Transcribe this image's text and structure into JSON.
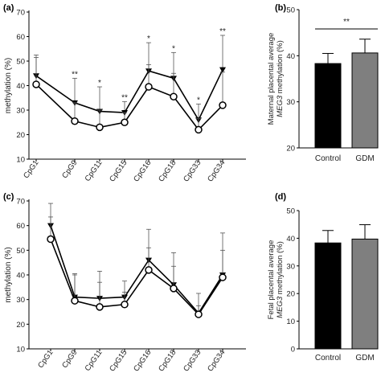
{
  "chart_data": [
    {
      "panel": "(a)",
      "type": "line",
      "categories": [
        "CpG1",
        "CpG9",
        "CpG11",
        "CpG15",
        "CpG16",
        "CpG18",
        "CpG33",
        "CpG34"
      ],
      "ylabel": "methylation (%)",
      "ylim": [
        10,
        70
      ],
      "yticks": [
        10,
        20,
        30,
        40,
        50,
        60,
        70
      ],
      "series": [
        {
          "marker": "filled-triangle",
          "values": [
            44,
            33,
            29.5,
            29,
            46,
            43,
            26,
            46.5
          ],
          "err": [
            8.5,
            10,
            10,
            4.5,
            11.5,
            10.5,
            6.5,
            14
          ]
        },
        {
          "marker": "open-circle",
          "values": [
            40.5,
            25.5,
            23,
            25,
            39.5,
            35.5,
            22,
            32
          ],
          "err": [
            11,
            7.5,
            7,
            4,
            9,
            9.5,
            4.5,
            13.5
          ]
        }
      ],
      "annotations": [
        "",
        "**",
        "*",
        "**",
        "*",
        "*",
        "*",
        "**"
      ]
    },
    {
      "panel": "(b)",
      "type": "bar",
      "categories": [
        "Control",
        "GDM"
      ],
      "values": [
        38.3,
        40.6
      ],
      "err": [
        2.2,
        3.0
      ],
      "colors": [
        "#000000",
        "#7f7f7f"
      ],
      "ylabel_line1": "Maternal placental average",
      "ylabel_gene": "MEG3",
      "ylabel_rest": " methylation (%)",
      "ylim": [
        20,
        50
      ],
      "yticks": [
        20,
        30,
        40,
        50
      ],
      "annotation": "**"
    },
    {
      "panel": "(c)",
      "type": "line",
      "categories": [
        "CpG1",
        "CpG9",
        "CpG11",
        "CpG15",
        "CpG16",
        "CpG18",
        "CpG33",
        "CpG34"
      ],
      "ylabel": "methylation (%)",
      "ylim": [
        10,
        70
      ],
      "yticks": [
        10,
        20,
        30,
        40,
        50,
        60,
        70
      ],
      "series": [
        {
          "marker": "filled-triangle",
          "values": [
            60,
            31,
            30.5,
            31,
            46,
            36,
            24.5,
            40
          ],
          "err": [
            9,
            9,
            11,
            6.5,
            12.5,
            13,
            8,
            17
          ]
        },
        {
          "marker": "open-circle",
          "values": [
            54.5,
            29.5,
            27,
            28,
            42,
            34.5,
            24,
            39
          ],
          "err": [
            9,
            11,
            10,
            5,
            9,
            9,
            3.5,
            11
          ]
        }
      ]
    },
    {
      "panel": "(d)",
      "type": "bar",
      "categories": [
        "Control",
        "GDM"
      ],
      "values": [
        38.3,
        39.7
      ],
      "err": [
        4.5,
        5.2
      ],
      "colors": [
        "#000000",
        "#7f7f7f"
      ],
      "ylabel_line1": "Fetal placental average",
      "ylabel_gene": "MEG3",
      "ylabel_rest": " methylation (%)",
      "ylim": [
        0,
        50
      ],
      "yticks": [
        0,
        10,
        20,
        30,
        40,
        50
      ]
    }
  ]
}
